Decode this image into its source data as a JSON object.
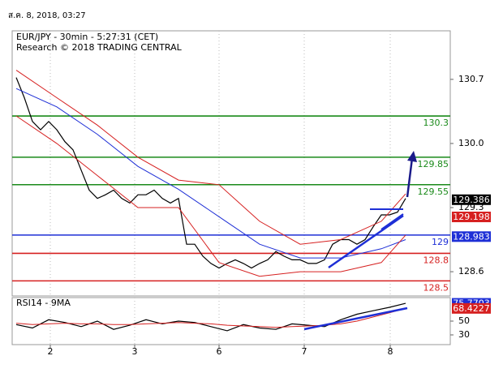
{
  "header_date": "ส.ค. 8, 2018, 03:27",
  "chart_data": [
    {
      "type": "line",
      "title": "EUR/JPY - 30min - 5:27:31 (CET)",
      "subtitle": "Research © 2018 TRADING CENTRAL",
      "x": [
        0,
        1,
        2,
        3,
        4,
        5,
        6,
        7,
        8,
        9,
        10,
        11,
        12,
        13,
        14,
        15,
        16,
        17,
        18,
        19,
        20,
        21,
        22,
        23,
        24,
        25,
        26,
        27,
        28,
        29,
        30,
        31,
        32,
        33,
        34,
        35,
        36,
        37,
        38,
        39,
        40,
        41,
        42,
        43,
        44,
        45,
        46,
        47,
        48
      ],
      "series": [
        {
          "color": "#000000",
          "values": [
            130.72,
            130.5,
            130.24,
            130.15,
            130.24,
            130.15,
            130.02,
            129.93,
            129.71,
            129.49,
            129.4,
            129.44,
            129.49,
            129.4,
            129.35,
            129.44,
            129.44,
            129.49,
            129.4,
            129.35,
            129.4,
            128.9,
            128.9,
            128.77,
            128.69,
            128.64,
            128.69,
            128.73,
            128.69,
            128.64,
            128.69,
            128.73,
            128.82,
            128.77,
            128.73,
            128.73,
            128.69,
            128.69,
            128.73,
            128.9,
            128.95,
            128.95,
            128.9,
            128.95,
            129.09,
            129.22,
            129.22,
            129.25,
            129.4
          ]
        },
        {
          "color": "#1e2fd6",
          "x": [
            0,
            5,
            10,
            15,
            20,
            25,
            30,
            35,
            40,
            45,
            48
          ],
          "values": [
            130.6,
            130.4,
            130.1,
            129.75,
            129.5,
            129.2,
            128.9,
            128.75,
            128.75,
            128.85,
            128.95
          ]
        },
        {
          "color": "#d62020",
          "x": [
            0,
            5,
            10,
            15,
            20,
            25,
            30,
            35,
            40,
            45,
            48
          ],
          "values": [
            130.8,
            130.5,
            130.2,
            129.85,
            129.6,
            129.55,
            129.15,
            128.9,
            128.95,
            129.15,
            129.45
          ]
        },
        {
          "color": "#d62020",
          "x": [
            0,
            5,
            10,
            15,
            20,
            25,
            30,
            35,
            40,
            45,
            48
          ],
          "values": [
            130.3,
            130.0,
            129.65,
            129.3,
            129.3,
            128.7,
            128.55,
            128.6,
            128.6,
            128.7,
            129.0
          ]
        }
      ],
      "levels": [
        {
          "value": 130.3,
          "color": "#1a8a1a"
        },
        {
          "value": 129.85,
          "color": "#1a8a1a"
        },
        {
          "value": 129.55,
          "color": "#1a8a1a"
        },
        {
          "value": 129,
          "color": "#1e2fd6"
        },
        {
          "value": 128.8,
          "color": "#d62020"
        },
        {
          "value": 128.5,
          "color": "#d62020"
        }
      ],
      "price_markers": [
        {
          "value": 129.386,
          "color": "#000000"
        },
        {
          "value": 129.198,
          "color": "#d62020"
        },
        {
          "value": 128.983,
          "color": "#1e2fd6"
        }
      ],
      "xlim": [
        -0.5,
        53.5
      ],
      "ylim": [
        128.335,
        131.23
      ],
      "yticks": [
        128.6,
        129.3,
        {
          "value": 130,
          "label": "130.0"
        },
        130.7
      ]
    },
    {
      "type": "line",
      "title": "RSI14 - 9MA",
      "x": [
        0,
        2,
        4,
        6,
        8,
        10,
        12,
        14,
        16,
        18,
        20,
        22,
        24,
        26,
        28,
        30,
        32,
        34,
        36,
        38,
        40,
        42,
        44,
        46,
        48
      ],
      "series": [
        {
          "color": "#000000",
          "values": [
            45,
            40,
            52,
            48,
            42,
            50,
            38,
            44,
            52,
            46,
            50,
            48,
            42,
            36,
            45,
            40,
            38,
            46,
            44,
            42,
            52,
            60,
            65,
            70,
            75.7703
          ]
        },
        {
          "color": "#d62020",
          "values": [
            47,
            45,
            46,
            47,
            46,
            46,
            45,
            45,
            46,
            47,
            48,
            47,
            46,
            44,
            43,
            42,
            41,
            42,
            43,
            44,
            46,
            50,
            56,
            62,
            68.4227
          ]
        }
      ],
      "price_markers": [
        {
          "value": 75.7703,
          "color": "#1e2fd6"
        },
        {
          "value": 68.4227,
          "color": "#d62020"
        }
      ],
      "xlim": [
        -0.5,
        53.5
      ],
      "ylim": [
        15.9,
        84.1
      ],
      "yticks": [
        30,
        50
      ],
      "xticks": [
        {
          "value": 4.2,
          "label": "2"
        },
        {
          "value": 14.6,
          "label": "3"
        },
        {
          "value": 25,
          "label": "6"
        },
        {
          "value": 35.5,
          "label": "7"
        },
        {
          "value": 46.1,
          "label": "8"
        }
      ],
      "grid": true
    }
  ]
}
